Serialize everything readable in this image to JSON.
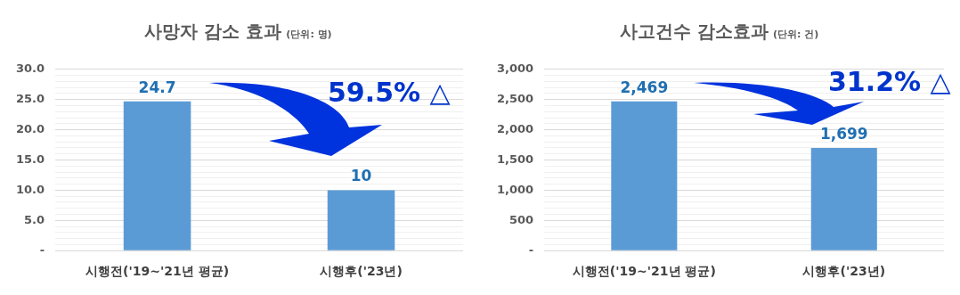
{
  "chart_data": [
    {
      "type": "bar",
      "title": "사망자 감소 효과",
      "subtitle": "(단위: 명)",
      "categories": [
        "시행전('19~'21년 평균)",
        "시행후('23년)"
      ],
      "values": [
        24.7,
        10
      ],
      "value_labels": [
        "24.7",
        "10"
      ],
      "color": "#5b9bd5",
      "ylim": [
        0,
        30
      ],
      "yticks": [
        {
          "value": 0,
          "label": "-"
        },
        {
          "value": 1,
          "label": null
        },
        {
          "value": 2,
          "label": null
        },
        {
          "value": 3,
          "label": null
        },
        {
          "value": 4,
          "label": null
        },
        {
          "value": 5,
          "label": "5.0"
        },
        {
          "value": 6,
          "label": null
        },
        {
          "value": 7,
          "label": null
        },
        {
          "value": 8,
          "label": null
        },
        {
          "value": 9,
          "label": null
        },
        {
          "value": 10,
          "label": "10.0"
        },
        {
          "value": 11,
          "label": null
        },
        {
          "value": 12,
          "label": null
        },
        {
          "value": 13,
          "label": null
        },
        {
          "value": 14,
          "label": null
        },
        {
          "value": 15,
          "label": "15.0"
        },
        {
          "value": 16,
          "label": null
        },
        {
          "value": 17,
          "label": null
        },
        {
          "value": 18,
          "label": null
        },
        {
          "value": 19,
          "label": null
        },
        {
          "value": 20,
          "label": "20.0"
        },
        {
          "value": 21,
          "label": null
        },
        {
          "value": 22,
          "label": null
        },
        {
          "value": 23,
          "label": null
        },
        {
          "value": 24,
          "label": null
        },
        {
          "value": 25,
          "label": "25.0"
        },
        {
          "value": 26,
          "label": null
        },
        {
          "value": 27,
          "label": null
        },
        {
          "value": 28,
          "label": null
        },
        {
          "value": 29,
          "label": null
        },
        {
          "value": 30,
          "label": "30.0"
        }
      ],
      "grid": "y",
      "annotations": [
        "59.5% △"
      ]
    },
    {
      "type": "bar",
      "title": "사고건수 감소효과",
      "subtitle": "(단위: 건)",
      "categories": [
        "시행전('19~'21년 평균)",
        "시행후('23년)"
      ],
      "values": [
        2469,
        1699
      ],
      "value_labels": [
        "2,469",
        "1,699"
      ],
      "color": "#5b9bd5",
      "ylim": [
        0,
        3000
      ],
      "yticks": [
        {
          "value": 0,
          "label": "-"
        },
        {
          "value": 100,
          "label": null
        },
        {
          "value": 200,
          "label": null
        },
        {
          "value": 300,
          "label": null
        },
        {
          "value": 400,
          "label": null
        },
        {
          "value": 500,
          "label": "500"
        },
        {
          "value": 600,
          "label": null
        },
        {
          "value": 700,
          "label": null
        },
        {
          "value": 800,
          "label": null
        },
        {
          "value": 900,
          "label": null
        },
        {
          "value": 1000,
          "label": "1,000"
        },
        {
          "value": 1100,
          "label": null
        },
        {
          "value": 1200,
          "label": null
        },
        {
          "value": 1300,
          "label": null
        },
        {
          "value": 1400,
          "label": null
        },
        {
          "value": 1500,
          "label": "1,500"
        },
        {
          "value": 1600,
          "label": null
        },
        {
          "value": 1700,
          "label": null
        },
        {
          "value": 1800,
          "label": null
        },
        {
          "value": 1900,
          "label": null
        },
        {
          "value": 2000,
          "label": "2,000"
        },
        {
          "value": 2100,
          "label": null
        },
        {
          "value": 2200,
          "label": null
        },
        {
          "value": 2300,
          "label": null
        },
        {
          "value": 2400,
          "label": null
        },
        {
          "value": 2500,
          "label": "2,500"
        },
        {
          "value": 2600,
          "label": null
        },
        {
          "value": 2700,
          "label": null
        },
        {
          "value": 2800,
          "label": null
        },
        {
          "value": 2900,
          "label": null
        },
        {
          "value": 3000,
          "label": "3,000"
        }
      ],
      "grid": "y",
      "annotations": [
        "31.2% △"
      ]
    }
  ]
}
